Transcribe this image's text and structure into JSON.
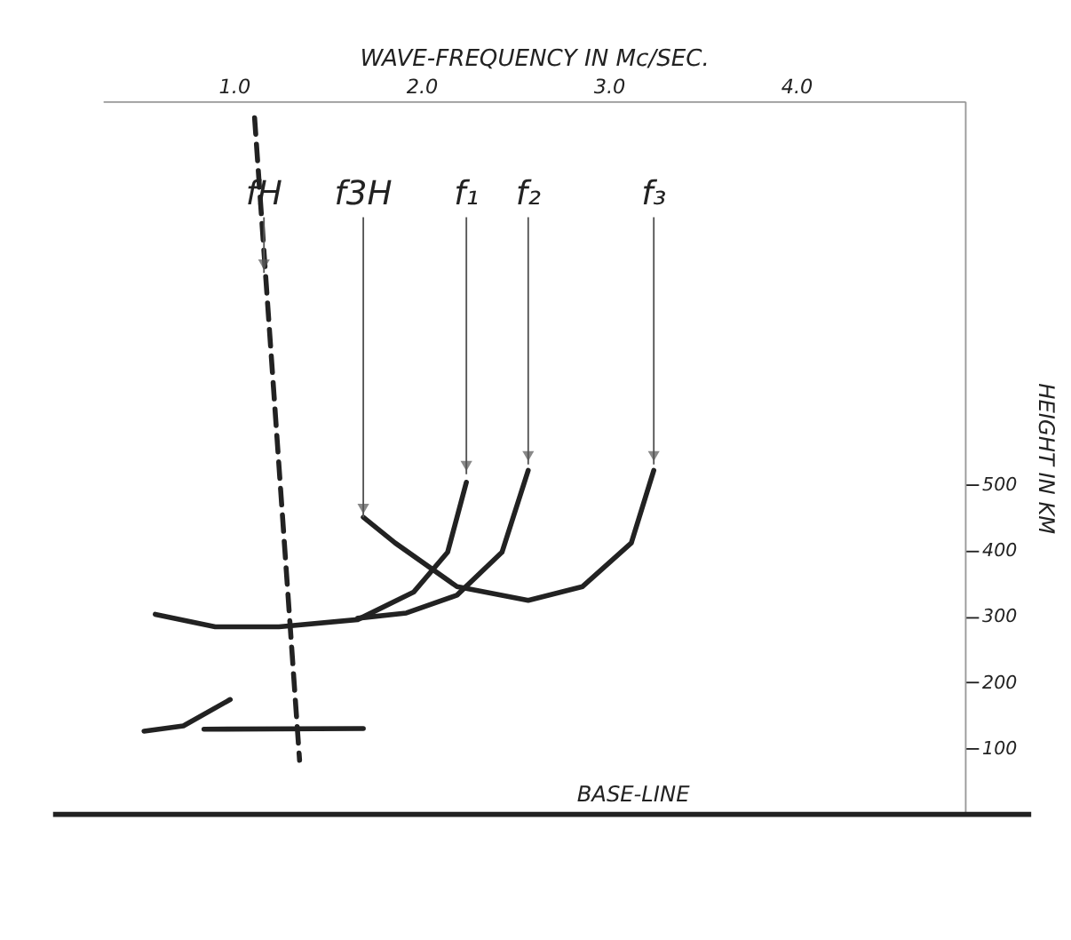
{
  "chart_data": {
    "type": "line",
    "xlabel": "WAVE-FREQUENCY IN Mc/SEC.",
    "ylabel": "HEIGHT IN KM",
    "xlim": [
      0.3,
      4.9
    ],
    "xticks": [
      {
        "value": 1,
        "label": "1.0"
      },
      {
        "value": 2,
        "label": "2.0"
      },
      {
        "value": 3,
        "label": "3.0"
      },
      {
        "value": 4,
        "label": "4.0"
      }
    ],
    "ylim": [
      0,
      1080
    ],
    "yticks": [
      100,
      200,
      300,
      400,
      500
    ],
    "grid": false,
    "line_style": "solid",
    "series": [
      {
        "color": "#222222",
        "x": [
          0.58,
          0.9,
          1.24,
          1.66,
          1.96,
          2.14,
          2.24
        ],
        "values": [
          303,
          284,
          284,
          295,
          337,
          397,
          503
        ]
      },
      {
        "color": "#222222",
        "x": [
          1.66,
          1.92,
          2.19,
          2.43,
          2.57
        ],
        "values": [
          297,
          305,
          332,
          397,
          521
        ]
      },
      {
        "color": "#222222",
        "x": [
          1.69,
          1.86,
          2.19,
          2.57,
          2.86,
          3.12,
          3.24
        ],
        "values": [
          450,
          411,
          345,
          324,
          345,
          411,
          521
        ]
      },
      {
        "color": "#222222",
        "line_style": "dashed",
        "x": [
          1.11,
          1.35
        ],
        "values": [
          1055,
          82
        ]
      },
      {
        "color": "#222222",
        "x": [
          0.52,
          0.73,
          0.98
        ],
        "values": [
          126,
          134,
          174
        ]
      },
      {
        "color": "#222222",
        "x": [
          0.84,
          1.69
        ],
        "values": [
          129,
          130
        ]
      }
    ],
    "annotations": [
      {
        "text": "fH",
        "x": 1.16,
        "y": 820
      },
      {
        "text": "f3H",
        "x": 1.69,
        "y": 450
      },
      {
        "text": "f₁",
        "x": 2.24,
        "y": 515
      },
      {
        "text": "f₂",
        "x": 2.57,
        "y": 530
      },
      {
        "text": "f₃",
        "x": 3.24,
        "y": 530
      }
    ],
    "ref_lines": [
      {
        "axis": "y",
        "value": 0,
        "label": "BASE-LINE"
      }
    ]
  }
}
